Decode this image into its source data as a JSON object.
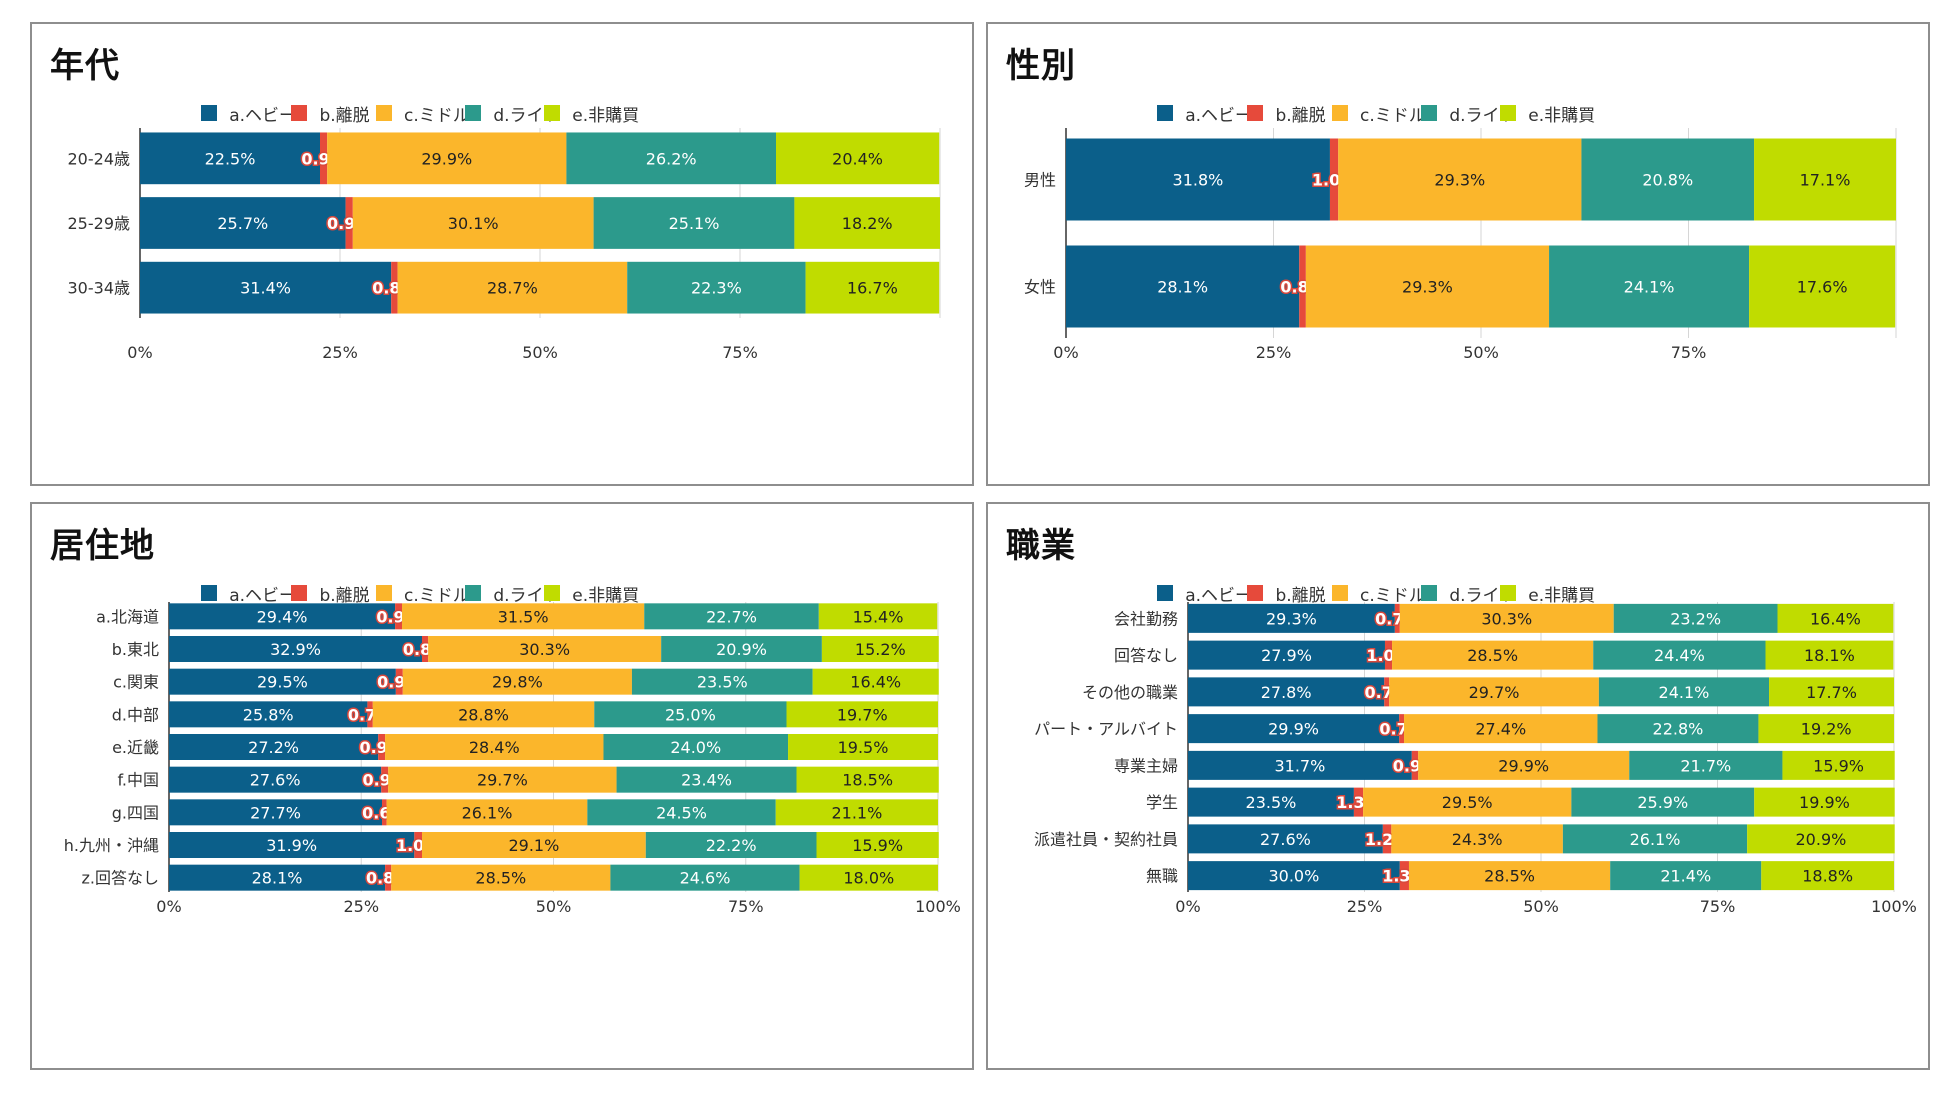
{
  "legend": [
    "a.ヘビー",
    "b.離脱",
    "c.ミドル",
    "d.ライト",
    "e.非購買"
  ],
  "colors": [
    "#0b5f8a",
    "#e64a3b",
    "#fbb62b",
    "#2c9a8c",
    "#c0dc00"
  ],
  "chart_data": [
    {
      "type": "bar",
      "orientation": "horizontal",
      "stacked": true,
      "title": "年代",
      "categories": [
        "20-24歳",
        "25-29歳",
        "30-34歳"
      ],
      "series": [
        {
          "name": "a.ヘビー",
          "values": [
            22.5,
            25.7,
            31.4
          ],
          "labels": [
            "22.5%",
            "25.7%",
            "31.4%"
          ]
        },
        {
          "name": "b.離脱",
          "values": [
            0.9,
            0.9,
            0.8
          ],
          "labels": [
            "0.9%",
            "0.9%",
            "0.8%"
          ]
        },
        {
          "name": "c.ミドル",
          "values": [
            29.9,
            30.1,
            28.7
          ],
          "labels": [
            "29.9%",
            "30.1%",
            "28.7%"
          ]
        },
        {
          "name": "d.ライト",
          "values": [
            26.2,
            25.1,
            22.3
          ],
          "labels": [
            "26.2%",
            "25.1%",
            "22.3%"
          ]
        },
        {
          "name": "e.非購買",
          "values": [
            20.4,
            18.2,
            16.7
          ],
          "labels": [
            "20.4%",
            "18.2%",
            "16.7%"
          ]
        }
      ],
      "xticks": [
        "0%",
        "25%",
        "50%",
        "75%"
      ],
      "xlim": [
        0,
        100
      ],
      "legend_position": "top"
    },
    {
      "type": "bar",
      "orientation": "horizontal",
      "stacked": true,
      "title": "性別",
      "categories": [
        "男性",
        "女性"
      ],
      "series": [
        {
          "name": "a.ヘビー",
          "values": [
            31.8,
            28.1
          ],
          "labels": [
            "31.8%",
            "28.1%"
          ]
        },
        {
          "name": "b.離脱",
          "values": [
            1.0,
            0.8
          ],
          "labels": [
            "1.0%",
            "0.8%"
          ]
        },
        {
          "name": "c.ミドル",
          "values": [
            29.3,
            29.3
          ],
          "labels": [
            "29.3%",
            "29.3%"
          ]
        },
        {
          "name": "d.ライト",
          "values": [
            20.8,
            24.1
          ],
          "labels": [
            "20.8%",
            "24.1%"
          ]
        },
        {
          "name": "e.非購買",
          "values": [
            17.1,
            17.6
          ],
          "labels": [
            "17.1%",
            "17.6%"
          ]
        }
      ],
      "xticks": [
        "0%",
        "25%",
        "50%",
        "75%"
      ],
      "xlim": [
        0,
        100
      ],
      "legend_position": "top"
    },
    {
      "type": "bar",
      "orientation": "horizontal",
      "stacked": true,
      "title": "居住地",
      "categories": [
        "a.北海道",
        "b.東北",
        "c.関東",
        "d.中部",
        "e.近畿",
        "f.中国",
        "g.四国",
        "h.九州・沖縄",
        "z.回答なし"
      ],
      "series": [
        {
          "name": "a.ヘビー",
          "values": [
            29.4,
            32.9,
            29.5,
            25.8,
            27.2,
            27.6,
            27.7,
            31.9,
            28.1
          ],
          "labels": [
            "29.4%",
            "32.9%",
            "29.5%",
            "25.8%",
            "27.2%",
            "27.6%",
            "27.7%",
            "31.9%",
            "28.1%"
          ]
        },
        {
          "name": "b.離脱",
          "values": [
            0.9,
            0.8,
            0.9,
            0.7,
            0.9,
            0.9,
            0.6,
            1.0,
            0.8
          ],
          "labels": [
            "0.9%",
            "0.8%",
            "0.9%",
            "0.7%",
            "0.9%",
            "0.9%",
            "0.6%",
            "1.0%",
            "0.8%"
          ]
        },
        {
          "name": "c.ミドル",
          "values": [
            31.5,
            30.3,
            29.8,
            28.8,
            28.4,
            29.7,
            26.1,
            29.1,
            28.5
          ],
          "labels": [
            "31.5%",
            "30.3%",
            "29.8%",
            "28.8%",
            "28.4%",
            "29.7%",
            "26.1%",
            "29.1%",
            "28.5%"
          ]
        },
        {
          "name": "d.ライト",
          "values": [
            22.7,
            20.9,
            23.5,
            25.0,
            24.0,
            23.4,
            24.5,
            22.2,
            24.6
          ],
          "labels": [
            "22.7%",
            "20.9%",
            "23.5%",
            "25.0%",
            "24.0%",
            "23.4%",
            "24.5%",
            "22.2%",
            "24.6%"
          ]
        },
        {
          "name": "e.非購買",
          "values": [
            15.4,
            15.2,
            16.4,
            19.7,
            19.5,
            18.5,
            21.1,
            15.9,
            18.0
          ],
          "labels": [
            "15.4%",
            "15.2%",
            "16.4%",
            "19.7%",
            "19.5%",
            "18.5%",
            "21.1%",
            "15.9%",
            "18.0%"
          ]
        }
      ],
      "xticks": [
        "0%",
        "25%",
        "50%",
        "75%",
        "100%"
      ],
      "xlim": [
        0,
        100
      ],
      "legend_position": "top"
    },
    {
      "type": "bar",
      "orientation": "horizontal",
      "stacked": true,
      "title": "職業",
      "categories": [
        "会社勤務",
        "回答なし",
        "その他の職業",
        "パート・アルバイト",
        "専業主婦",
        "学生",
        "派遣社員・契約社員",
        "無職"
      ],
      "series": [
        {
          "name": "a.ヘビー",
          "values": [
            29.3,
            27.9,
            27.8,
            29.9,
            31.7,
            23.5,
            27.6,
            30.0
          ],
          "labels": [
            "29.3%",
            "27.9%",
            "27.8%",
            "29.9%",
            "31.7%",
            "23.5%",
            "27.6%",
            "30.0%"
          ]
        },
        {
          "name": "b.離脱",
          "values": [
            0.7,
            1.0,
            0.7,
            0.7,
            0.9,
            1.3,
            1.2,
            1.3
          ],
          "labels": [
            "0.7%",
            "1.0%",
            "0.7%",
            "0.7%",
            "0.9%",
            "1.3%",
            "1.2%",
            "1.3%"
          ]
        },
        {
          "name": "c.ミドル",
          "values": [
            30.3,
            28.5,
            29.7,
            27.4,
            29.9,
            29.5,
            24.3,
            28.5
          ],
          "labels": [
            "30.3%",
            "28.5%",
            "29.7%",
            "27.4%",
            "29.9%",
            "29.5%",
            "24.3%",
            "28.5%"
          ]
        },
        {
          "name": "d.ライト",
          "values": [
            23.2,
            24.4,
            24.1,
            22.8,
            21.7,
            25.9,
            26.1,
            21.4
          ],
          "labels": [
            "23.2%",
            "24.4%",
            "24.1%",
            "22.8%",
            "21.7%",
            "25.9%",
            "26.1%",
            "21.4%"
          ]
        },
        {
          "name": "e.非購買",
          "values": [
            16.4,
            18.1,
            17.7,
            19.2,
            15.9,
            19.9,
            20.9,
            18.8
          ],
          "labels": [
            "16.4%",
            "18.1%",
            "17.7%",
            "19.2%",
            "15.9%",
            "19.9%",
            "20.9%",
            "18.8%"
          ]
        }
      ],
      "xticks": [
        "0%",
        "25%",
        "50%",
        "75%",
        "100%"
      ],
      "xlim": [
        0,
        100
      ],
      "legend_position": "top"
    }
  ]
}
